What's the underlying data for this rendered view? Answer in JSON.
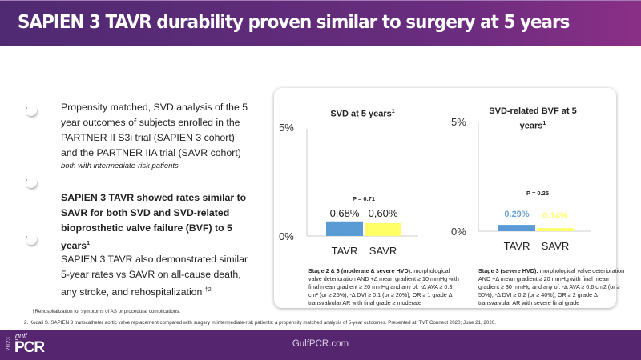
{
  "header": {
    "title": "SAPIEN 3 TAVR durability proven similar to surgery at 5 years"
  },
  "bullets": [
    {
      "text": "Propensity matched, SVD analysis of the 5 year outcomes of subjects enrolled in the PARTNER II S3i trial (SAPIEN 3 cohort) and the PARTNER IIA trial (SAVR cohort)",
      "subtext": "both with intermediate-risk patients"
    },
    {
      "text": "SAPIEN 3 TAVR showed rates similar to SAVR for both SVD and SVD-related bioprosthetic valve failure (BVF) to 5 years",
      "sup": "1"
    },
    {
      "text": "SAPIEN 3 TAVR also demonstrated similar 5-year rates vs SAVR on all-cause death, any stroke, and rehospitalization",
      "sup": "†2"
    }
  ],
  "bullet_icon": "chevron-right-icon",
  "chart_data": [
    {
      "type": "bar",
      "title": "SVD at 5 years",
      "title_sup": "1",
      "categories": [
        "TAVR",
        "SAVR"
      ],
      "values": [
        0.68,
        0.6
      ],
      "value_labels": [
        "0,68%",
        "0,60%"
      ],
      "ylim": [
        0,
        5
      ],
      "yticks": [
        "0%",
        "5%"
      ],
      "p_value": "P = 0.71",
      "colors": [
        "#5b9bd5",
        "#ffff66"
      ],
      "label_colors": [
        "#222222",
        "#222222"
      ],
      "note_bold": "Stage 2 & 3 (moderate & severe HVD):",
      "note": "morphological valve deterioration AND +Δ mean gradient ≥ 10 mmHg with final mean gradient ≥ 20 mmHg and any of: -Δ AVA ≥ 0.3 cm² (or ≥ 25%), -Δ DVI ≥ 0.1 (or ≥ 20%), OR ≥ 1 grade Δ transvalvular AR with final grade ≥ moderate"
    },
    {
      "type": "bar",
      "title": "SVD-related BVF at 5 years",
      "title_sup": "1",
      "categories": [
        "TAVR",
        "SAVR"
      ],
      "values": [
        0.29,
        0.14
      ],
      "value_labels": [
        "0.29%",
        "0.14%"
      ],
      "ylim": [
        0,
        5
      ],
      "yticks": [
        "0%",
        "5%"
      ],
      "p_value": "P = 0.25",
      "colors": [
        "#5b9bd5",
        "#ffff66"
      ],
      "label_colors": [
        "#5b9bd5",
        "#ffff66"
      ],
      "note_bold": "Stage 3 (severe HVD):",
      "note": " morphological valve deterioration AND +Δ mean gradient ≥ 20 mmHg with final mean gradient ≥ 30 mmHg and any of: -Δ AVA ≥ 0.6 cm2 (or ≥ 50%), -Δ DVI ≥ 0.2 (or ≥ 40%), OR ≥ 2 grade Δ transvalvular AR with severe final grade"
    }
  ],
  "footnotes": [
    "†Rehospitalization for symptoms of AS or procedural complications.",
    "2. Kodali S. SAPIEN 3 transcatheter aortic valve replacement compared with surgery in intermediate-risk patients: a propensity matched analysis of 5-year outcomes. Presented at: TVT Connect 2020; June 21, 2020."
  ],
  "footer": {
    "site": "GulfPCR.com",
    "logo_year": "2023",
    "logo_gulf": "gulf",
    "logo_pcr": "PCR"
  },
  "colors": {
    "header": "#5a2a78",
    "footer": "#55266f"
  }
}
